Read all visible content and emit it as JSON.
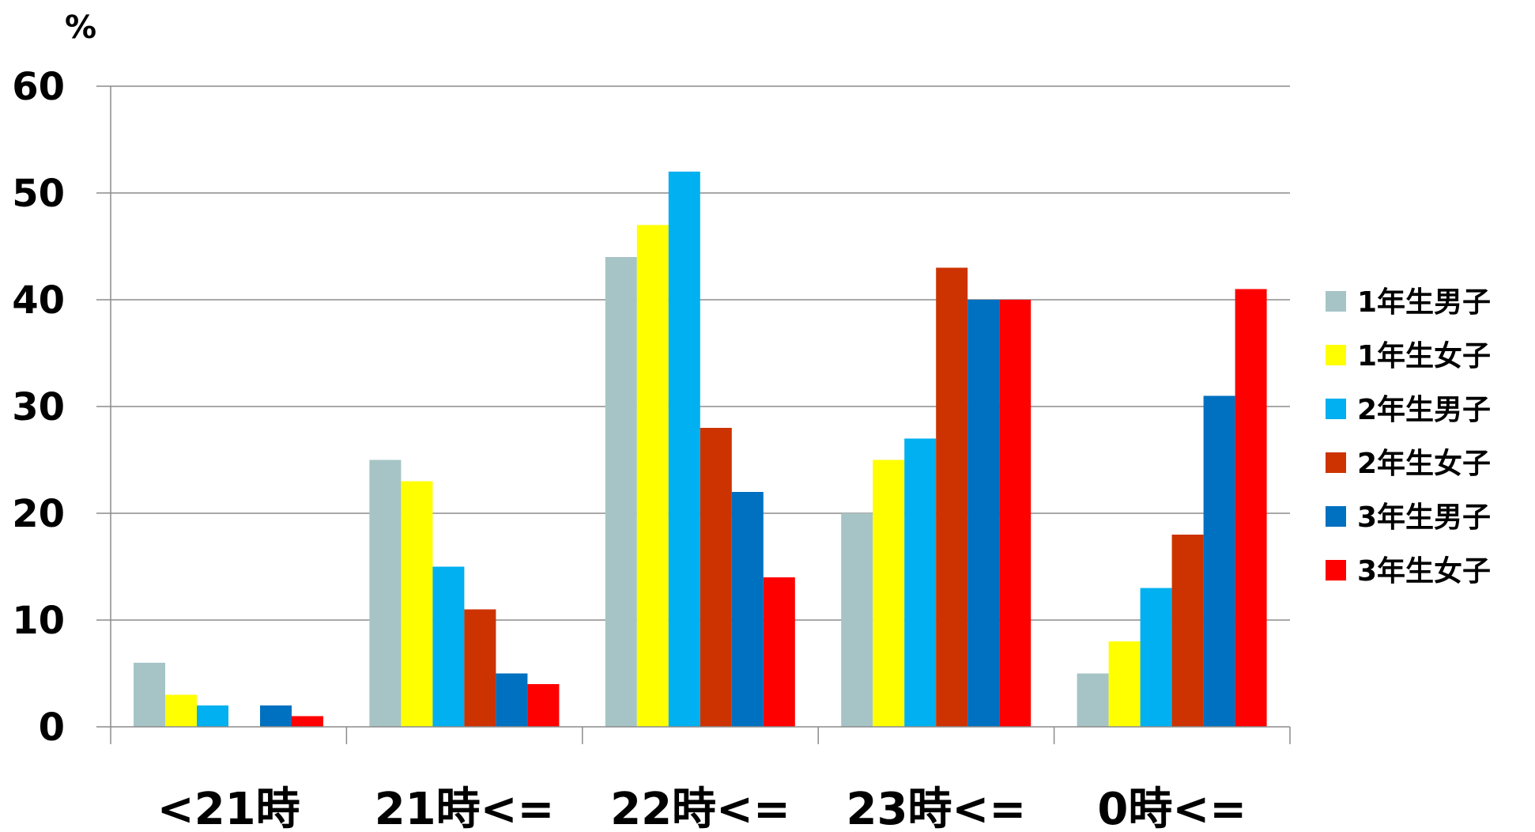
{
  "chart_data": {
    "type": "bar",
    "unit_label": "%",
    "categories": [
      "<21時",
      "21時<=",
      "22時<=",
      "23時<=",
      "0時<="
    ],
    "series": [
      {
        "name": "1年生男子",
        "color": "#a6c4c6",
        "values": [
          6,
          25,
          44,
          20,
          5
        ]
      },
      {
        "name": "1年生女子",
        "color": "#ffff00",
        "values": [
          3,
          23,
          47,
          25,
          8
        ]
      },
      {
        "name": "2年生男子",
        "color": "#00b0f0",
        "values": [
          2,
          15,
          52,
          27,
          13
        ]
      },
      {
        "name": "2年生女子",
        "color": "#cc3300",
        "values": [
          0,
          11,
          28,
          43,
          18
        ]
      },
      {
        "name": "3年生男子",
        "color": "#0070c0",
        "values": [
          2,
          5,
          22,
          40,
          31
        ]
      },
      {
        "name": "3年生女子",
        "color": "#ff0000",
        "values": [
          1,
          4,
          14,
          40,
          41
        ]
      }
    ],
    "ylim": [
      0,
      60
    ],
    "yticks": [
      "0",
      "10",
      "20",
      "30",
      "40",
      "50",
      "60"
    ],
    "grid": true,
    "legend_position": "right"
  }
}
